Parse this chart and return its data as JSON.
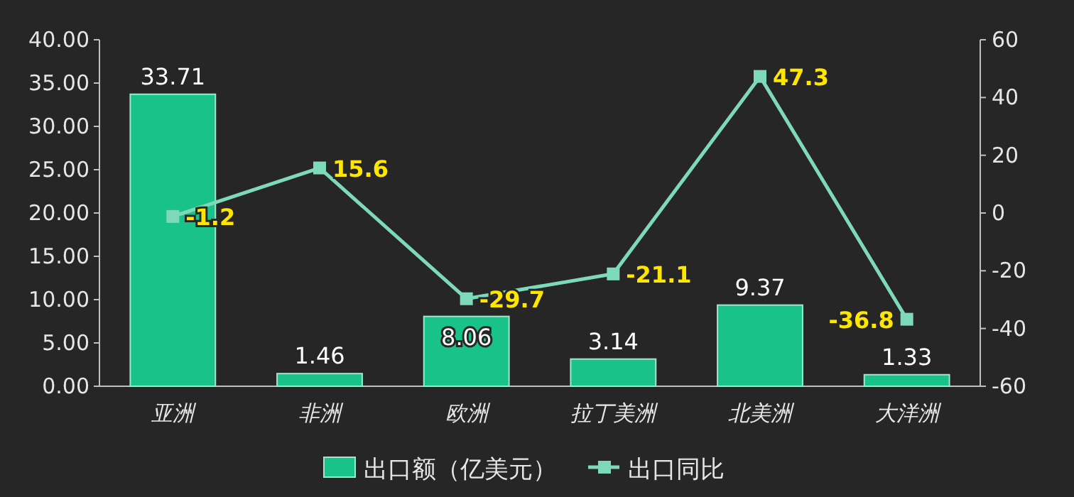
{
  "chart_data": {
    "type": "bar",
    "categories": [
      "亚洲",
      "非洲",
      "欧洲",
      "拉丁美洲",
      "北美洲",
      "大洋洲"
    ],
    "series": [
      {
        "name": "出口额（亿美元）",
        "color": "#19c289",
        "values": [
          33.71,
          1.46,
          8.06,
          3.14,
          9.37,
          1.33
        ]
      },
      {
        "name": "出口同比",
        "type": "line",
        "axis": "y2",
        "color": "#7ed9bb",
        "values": [
          -1.2,
          15.6,
          -29.7,
          -21.1,
          47.3,
          -36.8
        ]
      }
    ],
    "ylim": [
      0,
      40
    ],
    "yticks": [
      {
        "value": 0,
        "label": "0.00"
      },
      {
        "value": 5,
        "label": "5.00"
      },
      {
        "value": 10,
        "label": "10.00"
      },
      {
        "value": 15,
        "label": "15.00"
      },
      {
        "value": 20,
        "label": "20.00"
      },
      {
        "value": 25,
        "label": "25.00"
      },
      {
        "value": 30,
        "label": "30.00"
      },
      {
        "value": 35,
        "label": "35.00"
      },
      {
        "value": 40,
        "label": "40.00"
      }
    ],
    "y2lim": [
      -60,
      60
    ],
    "y2ticks": [
      -60,
      -40,
      -20,
      0,
      20,
      40,
      60
    ],
    "data_labels": true,
    "legend": "bottom",
    "marker": "square"
  }
}
